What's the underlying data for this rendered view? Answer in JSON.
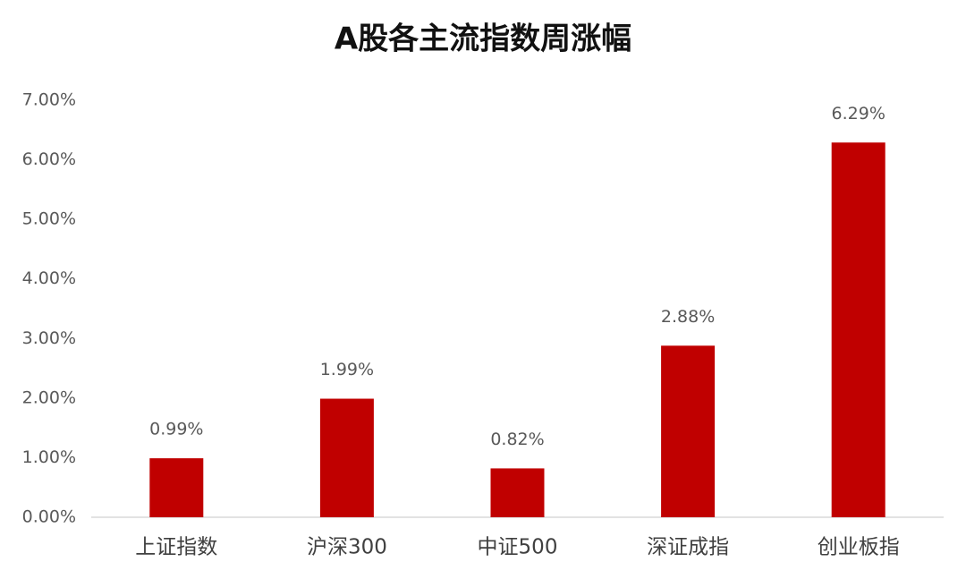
{
  "chart_data": {
    "type": "bar",
    "title": "A股各主流指数周涨幅",
    "categories": [
      "上证指数",
      "沪深300",
      "中证500",
      "深证成指",
      "创业板指"
    ],
    "values": [
      0.99,
      1.99,
      0.82,
      2.88,
      6.29
    ],
    "value_labels": [
      "0.99%",
      "1.99%",
      "0.82%",
      "2.88%",
      "6.29%"
    ],
    "color": "#c00000",
    "ylim": [
      0,
      7
    ],
    "yticks": [
      {
        "value": 0,
        "label": "0.00%"
      },
      {
        "value": 1,
        "label": "1.00%"
      },
      {
        "value": 2,
        "label": "2.00%"
      },
      {
        "value": 3,
        "label": "3.00%"
      },
      {
        "value": 4,
        "label": "4.00%"
      },
      {
        "value": 5,
        "label": "5.00%"
      },
      {
        "value": 6,
        "label": "6.00%"
      },
      {
        "value": 7,
        "label": "7.00%"
      }
    ],
    "grid": false
  }
}
